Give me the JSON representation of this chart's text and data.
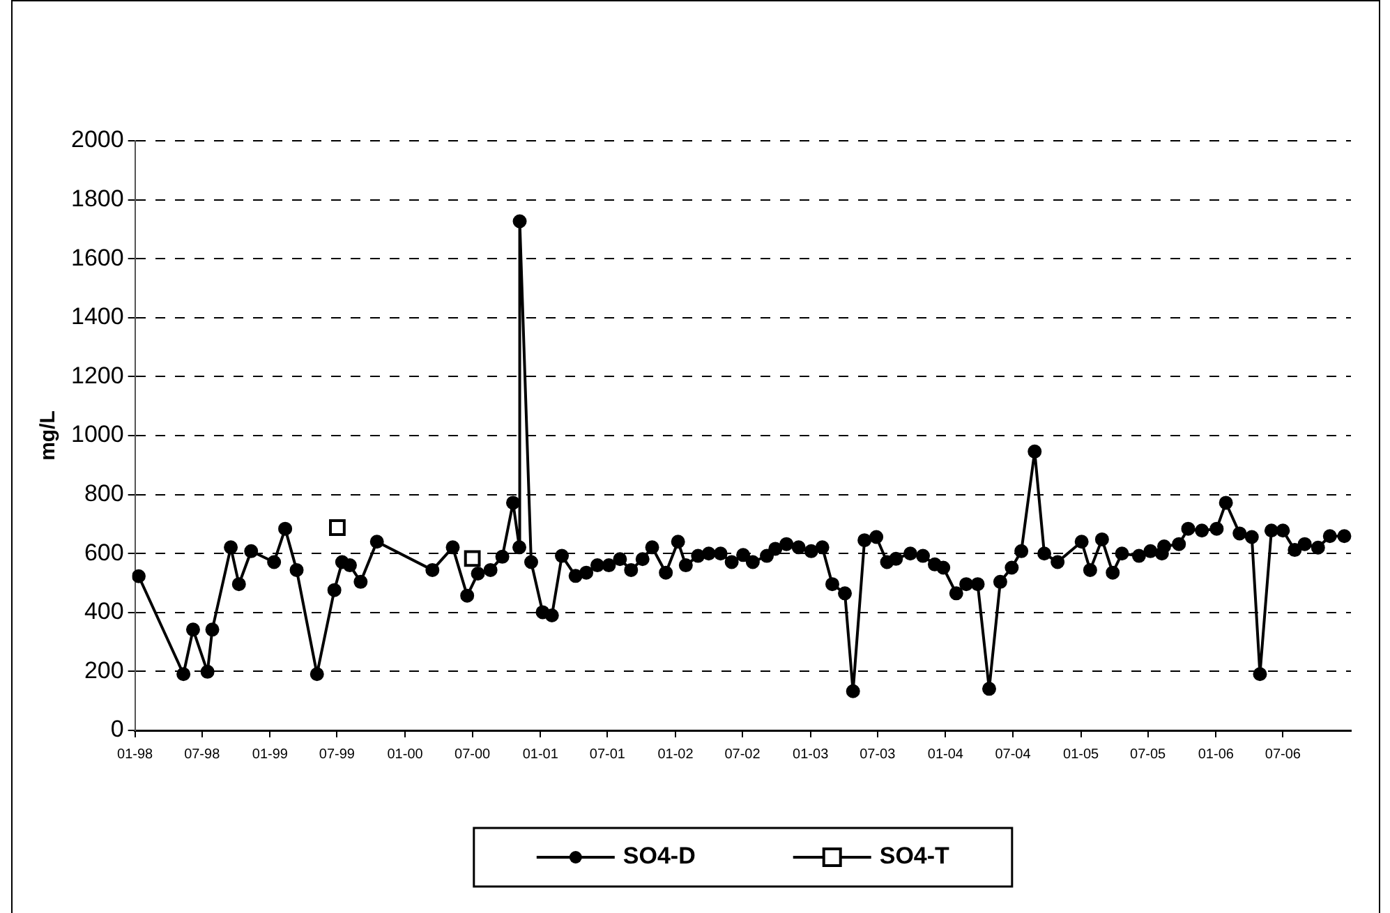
{
  "chart_data": {
    "type": "line",
    "ylabel": "mg/L",
    "ylim": [
      0,
      2000
    ],
    "yticks": [
      0,
      200,
      400,
      600,
      800,
      1000,
      1200,
      1400,
      1600,
      1800,
      2000
    ],
    "xlim": [
      "1998-01-01",
      "2007-01-01"
    ],
    "xticks": [
      {
        "value": "1998-01",
        "label": "01-98"
      },
      {
        "value": "1998-07",
        "label": "07-98"
      },
      {
        "value": "1999-01",
        "label": "01-99"
      },
      {
        "value": "1999-07",
        "label": "07-99"
      },
      {
        "value": "2000-01",
        "label": "01-00"
      },
      {
        "value": "2000-07",
        "label": "07-00"
      },
      {
        "value": "2001-01",
        "label": "01-01"
      },
      {
        "value": "2001-07",
        "label": "07-01"
      },
      {
        "value": "2002-01",
        "label": "01-02"
      },
      {
        "value": "2002-07",
        "label": "07-02"
      },
      {
        "value": "2003-01",
        "label": "01-03"
      },
      {
        "value": "2003-07",
        "label": "07-03"
      },
      {
        "value": "2004-01",
        "label": "01-04"
      },
      {
        "value": "2004-07",
        "label": "07-04"
      },
      {
        "value": "2005-01",
        "label": "01-05"
      },
      {
        "value": "2005-07",
        "label": "07-05"
      },
      {
        "value": "2006-01",
        "label": "01-06"
      },
      {
        "value": "2006-07",
        "label": "07-06"
      }
    ],
    "grid": "y",
    "legend": "bottom",
    "series": [
      {
        "name": "SO4-D",
        "marker": "circle",
        "line_style": "solid",
        "color": "#000000",
        "x": [
          "1998-01-11",
          "1998-05-12",
          "1998-06-07",
          "1998-07-16",
          "1998-07-29",
          "1998-09-17",
          "1998-10-09",
          "1998-11-11",
          "1999-01-12",
          "1999-02-11",
          "1999-03-14",
          "1999-05-08",
          "1999-06-24",
          "1999-07-15",
          "1999-08-05",
          "1999-09-03",
          "1999-10-17",
          "2000-03-15",
          "2000-05-09",
          "2000-06-17",
          "2000-07-16",
          "2000-08-19",
          "2000-09-20",
          "2000-10-19",
          "2000-11-05",
          "2000-11-06",
          "2000-12-07",
          "2001-01-07",
          "2001-02-01",
          "2001-02-28",
          "2001-04-06",
          "2001-05-05",
          "2001-06-04",
          "2001-07-05",
          "2001-08-04",
          "2001-09-03",
          "2001-10-04",
          "2001-10-30",
          "2001-12-06",
          "2002-01-08",
          "2002-01-29",
          "2002-03-03",
          "2002-04-01",
          "2002-05-03",
          "2002-06-02",
          "2002-07-03",
          "2002-07-29",
          "2002-09-05",
          "2002-09-28",
          "2002-10-28",
          "2002-11-30",
          "2003-01-03",
          "2003-02-02",
          "2003-03-01",
          "2003-04-04",
          "2003-04-26",
          "2003-05-27",
          "2003-06-28",
          "2003-07-27",
          "2003-08-20",
          "2003-09-28",
          "2003-11-01",
          "2003-12-03",
          "2003-12-26",
          "2004-01-30",
          "2004-02-26",
          "2004-03-28",
          "2004-04-28",
          "2004-05-28",
          "2004-06-28",
          "2004-07-24",
          "2004-08-29",
          "2004-09-24",
          "2004-10-30",
          "2005-01-03",
          "2005-01-26",
          "2005-02-27",
          "2005-03-28",
          "2005-04-22",
          "2005-06-07",
          "2005-07-08",
          "2005-08-08",
          "2005-08-14",
          "2005-09-23",
          "2005-10-18",
          "2005-11-24",
          "2006-01-03",
          "2006-01-28",
          "2006-03-06",
          "2006-04-08",
          "2006-04-30",
          "2006-05-31",
          "2006-07-01",
          "2006-08-02",
          "2006-08-29",
          "2006-10-04",
          "2006-11-05",
          "2006-12-14"
        ],
        "values": [
          523,
          191,
          342,
          199,
          342,
          621,
          496,
          608,
          571,
          684,
          544,
          191,
          476,
          571,
          560,
          504,
          640,
          544,
          621,
          457,
          532,
          544,
          589,
          772,
          621,
          1727,
          571,
          401,
          390,
          592,
          524,
          535,
          560,
          560,
          581,
          544,
          581,
          621,
          535,
          640,
          560,
          592,
          600,
          600,
          571,
          595,
          571,
          592,
          616,
          632,
          621,
          608,
          621,
          496,
          465,
          133,
          645,
          656,
          571,
          582,
          600,
          592,
          563,
          552,
          465,
          496,
          496,
          141,
          504,
          552,
          608,
          946,
          600,
          571,
          640,
          544,
          648,
          535,
          600,
          592,
          608,
          600,
          624,
          632,
          684,
          678,
          684,
          772,
          668,
          656,
          191,
          678,
          678,
          612,
          632,
          620,
          659,
          659
        ]
      },
      {
        "name": "SO4-T",
        "type": "scatter",
        "marker": "square",
        "color": "#000000",
        "x": [
          "1999-07-02",
          "2000-07-01"
        ],
        "values": [
          688,
          583
        ]
      }
    ]
  }
}
